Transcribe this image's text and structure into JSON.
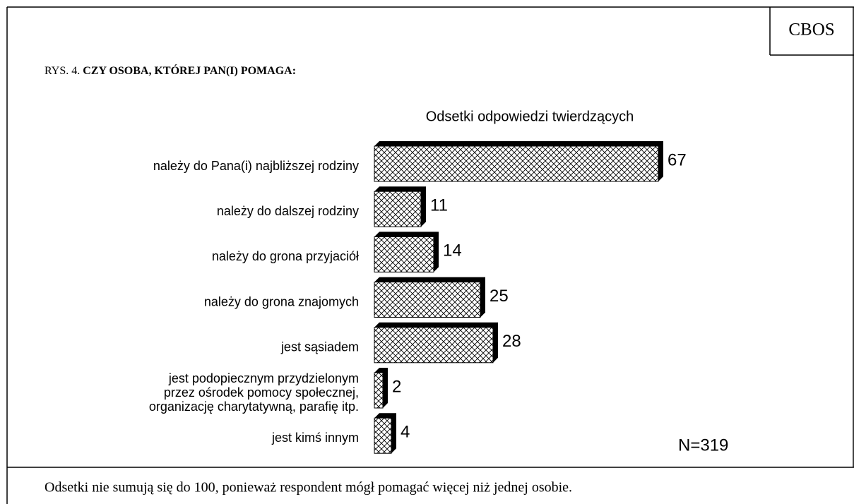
{
  "chart_data": {
    "type": "bar",
    "orientation": "horizontal",
    "source": "CBOS",
    "figure_label": "RYS. 4.",
    "title": "CZY OSOBA, KTÓREJ PAN(I) POMAGA:",
    "subtitle": "Odsetki odpowiedzi twierdzących",
    "categories": [
      "należy do Pana(i) najbliższej rodziny",
      "należy do dalszej rodziny",
      "należy do grona przyjaciół",
      "należy do grona znajomych",
      "jest sąsiadem",
      "jest podopiecznym przydzielonym\nprzez ośrodek pomocy społecznej,\norganizację charytatywną, parafię itp.",
      "jest kimś innym"
    ],
    "values": [
      67,
      11,
      14,
      25,
      28,
      2,
      4
    ],
    "color": "#000000",
    "annotation": "N=319",
    "footnote": "Odsetki nie sumują się do 100, ponieważ respondent mógł pomagać więcej niż jednej osobie."
  }
}
